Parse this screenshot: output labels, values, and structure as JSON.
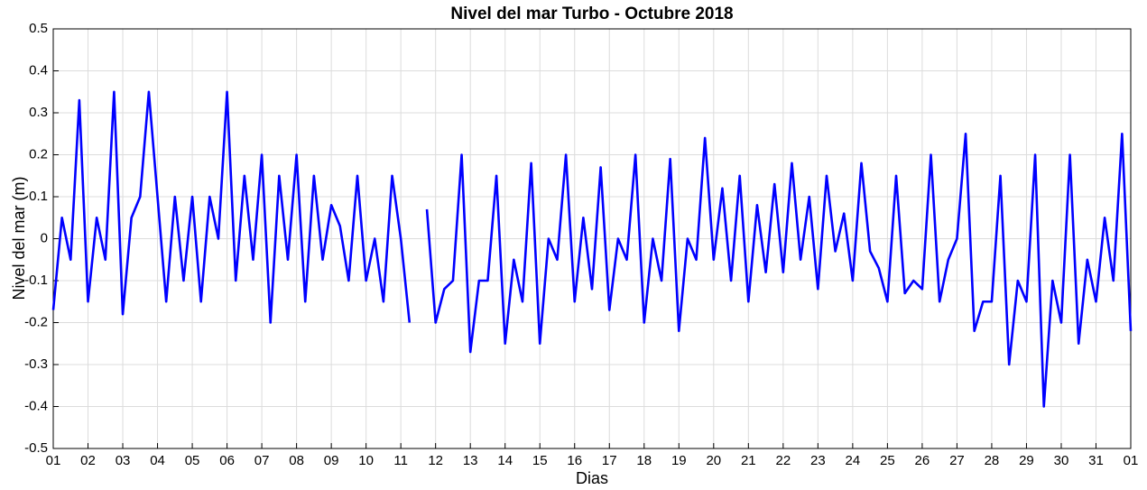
{
  "chart_data": {
    "type": "line",
    "title": "Nivel del mar Turbo - Octubre 2018",
    "x_label": "Dias",
    "y_label": "Nivel del mar (m)",
    "xlim": [
      1,
      32
    ],
    "ylim": [
      -0.5,
      0.5
    ],
    "grid": true,
    "xticks": [
      {
        "value": 1,
        "label": "01"
      },
      {
        "value": 2,
        "label": "02"
      },
      {
        "value": 3,
        "label": "03"
      },
      {
        "value": 4,
        "label": "04"
      },
      {
        "value": 5,
        "label": "05"
      },
      {
        "value": 6,
        "label": "06"
      },
      {
        "value": 7,
        "label": "07"
      },
      {
        "value": 8,
        "label": "08"
      },
      {
        "value": 9,
        "label": "09"
      },
      {
        "value": 10,
        "label": "10"
      },
      {
        "value": 11,
        "label": "11"
      },
      {
        "value": 12,
        "label": "12"
      },
      {
        "value": 13,
        "label": "13"
      },
      {
        "value": 14,
        "label": "14"
      },
      {
        "value": 15,
        "label": "15"
      },
      {
        "value": 16,
        "label": "16"
      },
      {
        "value": 17,
        "label": "17"
      },
      {
        "value": 18,
        "label": "18"
      },
      {
        "value": 19,
        "label": "19"
      },
      {
        "value": 20,
        "label": "20"
      },
      {
        "value": 21,
        "label": "21"
      },
      {
        "value": 22,
        "label": "22"
      },
      {
        "value": 23,
        "label": "23"
      },
      {
        "value": 24,
        "label": "24"
      },
      {
        "value": 25,
        "label": "25"
      },
      {
        "value": 26,
        "label": "26"
      },
      {
        "value": 27,
        "label": "27"
      },
      {
        "value": 28,
        "label": "28"
      },
      {
        "value": 29,
        "label": "29"
      },
      {
        "value": 30,
        "label": "30"
      },
      {
        "value": 31,
        "label": "31"
      },
      {
        "value": 32,
        "label": "01"
      }
    ],
    "yticks": [
      -0.5,
      -0.4,
      -0.3,
      -0.2,
      -0.1,
      0,
      0.1,
      0.2,
      0.3,
      0.4,
      0.5
    ],
    "x": [
      1,
      1.25,
      1.5,
      1.75,
      2,
      2.25,
      2.5,
      2.75,
      3,
      3.25,
      3.5,
      3.75,
      4,
      4.25,
      4.5,
      4.75,
      5,
      5.25,
      5.5,
      5.75,
      6,
      6.25,
      6.5,
      6.75,
      7,
      7.25,
      7.5,
      7.75,
      8,
      8.25,
      8.5,
      8.75,
      9,
      9.25,
      9.5,
      9.75,
      10,
      10.25,
      10.5,
      10.75,
      11,
      11.25,
      11.5,
      11.75,
      12,
      12.25,
      12.5,
      12.75,
      13,
      13.25,
      13.5,
      13.75,
      14,
      14.25,
      14.5,
      14.75,
      15,
      15.25,
      15.5,
      15.75,
      16,
      16.25,
      16.5,
      16.75,
      17,
      17.25,
      17.5,
      17.75,
      18,
      18.25,
      18.5,
      18.75,
      19,
      19.25,
      19.5,
      19.75,
      20,
      20.25,
      20.5,
      20.75,
      21,
      21.25,
      21.5,
      21.75,
      22,
      22.25,
      22.5,
      22.75,
      23,
      23.25,
      23.5,
      23.75,
      24,
      24.25,
      24.5,
      24.75,
      25,
      25.25,
      25.5,
      25.75,
      26,
      26.25,
      26.5,
      26.75,
      27,
      27.25,
      27.5,
      27.75,
      28,
      28.25,
      28.5,
      28.75,
      29,
      29.25,
      29.5,
      29.75,
      30,
      30.25,
      30.5,
      30.75,
      31,
      31.25,
      31.5,
      31.75,
      32
    ],
    "series": [
      {
        "color": "#0000ff",
        "values": [
          -0.17,
          0.05,
          -0.05,
          0.33,
          -0.15,
          0.05,
          -0.05,
          0.35,
          -0.18,
          0.05,
          0.1,
          0.35,
          0.1,
          -0.15,
          0.1,
          -0.1,
          0.1,
          -0.15,
          0.1,
          0.0,
          0.35,
          -0.1,
          0.15,
          -0.05,
          0.2,
          -0.2,
          0.15,
          -0.05,
          0.2,
          -0.15,
          0.15,
          -0.05,
          0.08,
          0.03,
          -0.1,
          0.15,
          -0.1,
          0.0,
          -0.15,
          0.15,
          0.0,
          -0.2,
          null,
          0.07,
          -0.2,
          -0.12,
          -0.1,
          0.2,
          -0.27,
          -0.1,
          -0.1,
          0.15,
          -0.25,
          -0.05,
          -0.15,
          0.18,
          -0.25,
          0.0,
          -0.05,
          0.2,
          -0.15,
          0.05,
          -0.12,
          0.17,
          -0.17,
          0.0,
          -0.05,
          0.2,
          -0.2,
          0.0,
          -0.1,
          0.19,
          -0.22,
          0.0,
          -0.05,
          0.24,
          -0.05,
          0.12,
          -0.1,
          0.15,
          -0.15,
          0.08,
          -0.08,
          0.13,
          -0.08,
          0.18,
          -0.05,
          0.1,
          -0.12,
          0.15,
          -0.03,
          0.06,
          -0.1,
          0.18,
          -0.03,
          -0.07,
          -0.15,
          0.15,
          -0.13,
          -0.1,
          -0.12,
          0.2,
          -0.15,
          -0.05,
          0.0,
          0.25,
          -0.22,
          -0.15,
          -0.15,
          0.15,
          -0.3,
          -0.1,
          -0.15,
          0.2,
          -0.4,
          -0.1,
          -0.2,
          0.2,
          -0.25,
          -0.05,
          -0.15,
          0.05,
          -0.1,
          0.25,
          -0.22
        ]
      }
    ]
  }
}
